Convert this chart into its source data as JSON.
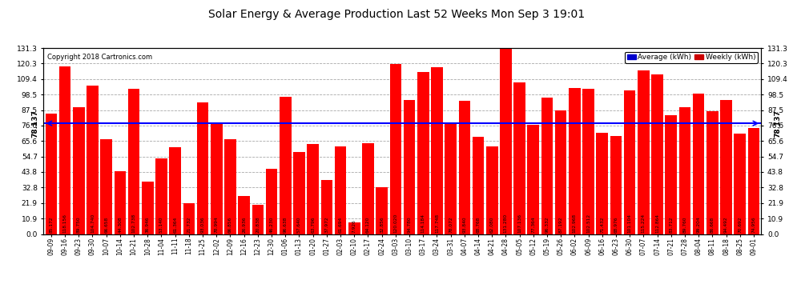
{
  "title": "Solar Energy & Average Production Last 52 Weeks Mon Sep 3 19:01",
  "copyright": "Copyright 2018 Cartronics.com",
  "average_value": 78.137,
  "bar_color": "#FF0000",
  "average_line_color": "#0000FF",
  "background_color": "#FFFFFF",
  "plot_bg_color": "#FFFFFF",
  "grid_color": "#AAAAAA",
  "ylim": [
    0,
    131.3
  ],
  "yticks": [
    0.0,
    10.9,
    21.9,
    32.8,
    43.8,
    54.7,
    65.6,
    76.6,
    87.5,
    98.5,
    109.4,
    120.3,
    131.3
  ],
  "legend_avg_color": "#0000CC",
  "legend_weekly_color": "#CC0000",
  "categories": [
    "09-09",
    "09-16",
    "09-23",
    "09-30",
    "10-07",
    "10-14",
    "10-21",
    "10-28",
    "11-04",
    "11-11",
    "11-18",
    "11-25",
    "12-02",
    "12-09",
    "12-16",
    "12-23",
    "12-30",
    "01-06",
    "01-13",
    "01-20",
    "01-27",
    "02-03",
    "02-10",
    "02-17",
    "02-24",
    "03-03",
    "03-10",
    "03-17",
    "03-24",
    "03-31",
    "04-07",
    "04-14",
    "04-21",
    "04-28",
    "05-05",
    "05-12",
    "05-19",
    "05-26",
    "06-02",
    "06-09",
    "06-16",
    "06-23",
    "06-30",
    "07-07",
    "07-14",
    "07-21",
    "07-28",
    "08-04",
    "08-11",
    "08-18",
    "08-25",
    "09-01"
  ],
  "values": [
    85.172,
    118.156,
    89.75,
    104.74,
    66.658,
    44.308,
    102.738,
    36.946,
    53.14,
    61.364,
    21.732,
    93.036,
    78.994,
    66.856,
    26.936,
    20.838,
    46.23,
    96.638,
    57.64,
    63.796,
    37.972,
    61.694,
    7.926,
    64.12,
    32.856,
    120.02,
    94.78,
    114.184,
    117.748,
    78.072,
    93.84,
    68.768,
    62.08,
    131.28,
    107.136,
    77.364,
    96.332,
    87.192,
    102.968,
    102.512,
    71.432,
    68.976,
    101.104,
    115.224,
    112.864,
    83.712,
    89.76,
    99.204,
    86.668,
    94.492,
    70.692,
    74.956
  ]
}
